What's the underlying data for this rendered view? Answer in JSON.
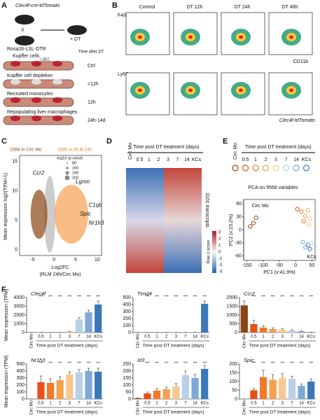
{
  "panels": {
    "A": {
      "letter": "A",
      "title": "Clec4f-cre-tdTomato",
      "cross": "X",
      "dt": "+ DT",
      "rosa": "Rosa26-LSL-DTR",
      "kupffer": "Kupffer cells",
      "lsec": "LSEC",
      "time_header": "Time after DT",
      "steps": [
        "Kupffer cell depletion",
        "Recruited monocytes",
        "Repopulating liver macrophages"
      ],
      "times": [
        "Ctrl",
        "<12h",
        "12h",
        "24h-14d"
      ]
    },
    "B": {
      "letter": "B",
      "columns": [
        "Control",
        "DT 12h",
        "DT 24h",
        "DT 48h"
      ],
      "y_top": "F4/80",
      "x_top": "CD11b",
      "y_bottom": "Ly6C",
      "x_bottom": "Clec4f-tdTomato"
    },
    "C": {
      "letter": "C",
      "left": "1568 in Circ Mo",
      "right": "1895 in RLM 24h",
      "legend_title": "-log10 (p-value)",
      "sizes": [
        80,
        160,
        240,
        320
      ],
      "genes": [
        "Ccr2",
        "Lgmn",
        "Spic",
        "C1qb",
        "Nr1h3"
      ],
      "ylabel": "Mean expression log2(TPM+1)",
      "xlabel": [
        "Log2FC",
        "(RLM 24h/Circ Mo)"
      ],
      "xticks": [
        -5,
        0,
        5,
        10
      ],
      "yticks": [
        0,
        5,
        10,
        15
      ]
    },
    "D": {
      "letter": "D",
      "header": "Time post DT treatment (days)",
      "groups": [
        "Circ Mo",
        "0.5",
        "1",
        "2",
        "3",
        "7",
        "14",
        "KCs"
      ],
      "right": "3101 transcripts",
      "scale_label": "Row z-score",
      "scale_ticks": [
        3,
        2,
        1,
        0,
        -1,
        -2,
        -3
      ]
    },
    "E": {
      "letter": "E",
      "header": "Time post DT treatment (days)",
      "groups": [
        "Circ Mo",
        "0.5",
        "1",
        "2",
        "3",
        "7",
        "14",
        "KCs"
      ]
    },
    "F": {
      "letter": "F"
    }
  },
  "chart_data": [
    {
      "type": "scatter",
      "title": "PCA on 9568 variables",
      "xlabel": "PC1 (v:41.9%)",
      "ylabel": "PC2 (v:23.2%)",
      "xlim": [
        -160,
        60
      ],
      "ylim": [
        -70,
        70
      ],
      "xticks": [
        -150,
        -100,
        -50,
        0,
        50
      ],
      "yticks": [
        -60,
        -30,
        0,
        30,
        60
      ],
      "x": [
        -140,
        -130,
        -122,
        5,
        18,
        25,
        30,
        38,
        42,
        45,
        22,
        30,
        38,
        44,
        48
      ],
      "y": [
        8,
        16,
        28,
        48,
        42,
        20,
        32,
        45,
        12,
        26,
        -28,
        -40,
        -34,
        -44,
        -30
      ],
      "colors": [
        "#8b4513",
        "#8b4513",
        "#8b4513",
        "#e8501a",
        "#f07a2a",
        "#f07a2a",
        "#f5a050",
        "#f5a050",
        "#f8c890",
        "#f8c890",
        "#7fa8d8",
        "#7fa8d8",
        "#3a78b8",
        "#3a78b8",
        "#b8d0e8"
      ],
      "annotations": [
        "Circ Mo",
        "KCs"
      ]
    },
    {
      "type": "bar",
      "title": "Clec4f",
      "ylabel": "Mean expression (TPM)",
      "xlabel": "Time post DT treatment (days)",
      "sig": "***",
      "categories": [
        "Circ Mo",
        "0.5",
        "1",
        "2",
        "3",
        "7",
        "14",
        "KCs"
      ],
      "values": [
        0,
        0,
        0,
        0,
        100,
        1500,
        2300,
        3200
      ],
      "errors": [
        0,
        0,
        0,
        0,
        30,
        200,
        250,
        400
      ],
      "colors": [
        "#8b4513",
        "#e8501a",
        "#f07a2a",
        "#f5a050",
        "#f8c890",
        "#b8d0e8",
        "#7fa8d8",
        "#3a78b8"
      ],
      "ylim": [
        0,
        4000
      ],
      "yticks": [
        0,
        1000,
        2000,
        3000,
        4000
      ]
    },
    {
      "type": "bar",
      "title": "Timd4",
      "xlabel": "Time post DT treatment (days)",
      "sig": "***",
      "categories": [
        "Circ Mo",
        "0.5",
        "1",
        "2",
        "3",
        "7",
        "14",
        "KCs"
      ],
      "values": [
        0,
        0,
        0,
        0,
        0,
        2,
        3,
        410
      ],
      "errors": [
        0,
        0,
        0,
        0,
        0,
        1,
        1,
        40
      ],
      "colors": [
        "#8b4513",
        "#e8501a",
        "#f07a2a",
        "#f5a050",
        "#f8c890",
        "#b8d0e8",
        "#7fa8d8",
        "#3a78b8"
      ],
      "ylim": [
        0,
        500
      ],
      "yticks": [
        0,
        100,
        200,
        300,
        400,
        500
      ]
    },
    {
      "type": "bar",
      "title": "Ccr2",
      "xlabel": "Time post DT treatment (days)",
      "sig": "***",
      "categories": [
        "Circ Mo",
        "0.5",
        "1",
        "2",
        "3",
        "7",
        "14",
        "KCs"
      ],
      "values": [
        1550,
        480,
        280,
        200,
        160,
        120,
        60,
        10
      ],
      "errors": [
        250,
        220,
        100,
        60,
        50,
        40,
        20,
        5
      ],
      "colors": [
        "#8b4513",
        "#e8501a",
        "#f07a2a",
        "#f5a050",
        "#f8c890",
        "#b8d0e8",
        "#7fa8d8",
        "#3a78b8"
      ],
      "ylim": [
        0,
        2000
      ],
      "yticks": [
        0,
        500,
        1000,
        1500,
        2000
      ]
    },
    {
      "type": "bar",
      "title": "Nr1h3",
      "ylabel": "Mean expression (TPM)",
      "xlabel": "Time post DT treatment (days)",
      "sig": "***",
      "categories": [
        "Circ Mo",
        "0.5",
        "1",
        "2",
        "3",
        "7",
        "14",
        "KCs"
      ],
      "values": [
        0,
        240,
        230,
        270,
        350,
        380,
        400,
        390
      ],
      "errors": [
        0,
        90,
        60,
        50,
        40,
        40,
        40,
        50
      ],
      "colors": [
        "#8b4513",
        "#e8501a",
        "#f07a2a",
        "#f5a050",
        "#f8c890",
        "#b8d0e8",
        "#7fa8d8",
        "#3a78b8"
      ],
      "ylim": [
        0,
        500
      ],
      "yticks": [
        0,
        100,
        200,
        300,
        400,
        500
      ]
    },
    {
      "type": "bar",
      "title": "Id3",
      "xlabel": "Time post DT treatment (days)",
      "sig": "***",
      "categories": [
        "Circ Mo",
        "0.5",
        "1",
        "2",
        "3",
        "7",
        "14",
        "KCs"
      ],
      "values": [
        5,
        40,
        60,
        70,
        90,
        170,
        150,
        215
      ],
      "errors": [
        2,
        10,
        15,
        15,
        20,
        30,
        25,
        25
      ],
      "colors": [
        "#8b4513",
        "#e8501a",
        "#f07a2a",
        "#f5a050",
        "#f8c890",
        "#b8d0e8",
        "#7fa8d8",
        "#3a78b8"
      ],
      "ylim": [
        0,
        250
      ],
      "yticks": [
        0,
        50,
        100,
        150,
        200,
        250
      ]
    },
    {
      "type": "bar",
      "title": "Spic",
      "xlabel": "Time post DT treatment (days)",
      "sig": "***",
      "categories": [
        "Circ Mo",
        "0.5",
        "1",
        "2",
        "3",
        "7",
        "14",
        "KCs"
      ],
      "values": [
        0,
        50,
        125,
        110,
        120,
        115,
        75,
        100
      ],
      "errors": [
        0,
        8,
        40,
        30,
        25,
        15,
        10,
        15
      ],
      "colors": [
        "#8b4513",
        "#e8501a",
        "#f07a2a",
        "#f5a050",
        "#f8c890",
        "#b8d0e8",
        "#7fa8d8",
        "#3a78b8"
      ],
      "ylim": [
        0,
        200
      ],
      "yticks": [
        0,
        50,
        100,
        150,
        200
      ]
    }
  ]
}
